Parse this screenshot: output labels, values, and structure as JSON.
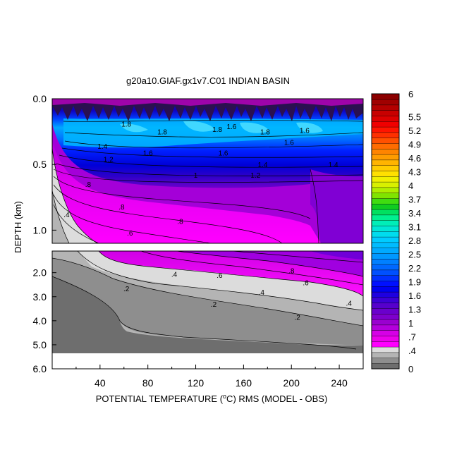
{
  "chart_data": {
    "type": "heatmap",
    "title": "g20a10.GIAF.gx1v7.C01 INDIAN BASIN",
    "xlabel_prefix": "POTENTIAL TEMPERATURE (",
    "xlabel_unit_sup": "o",
    "xlabel_unit_main": "C",
    "xlabel_suffix": ") RMS (MODEL - OBS)",
    "ylabel": "DEPTH (km)",
    "xlim": [
      0,
      260
    ],
    "x_ticks": [
      40,
      80,
      120,
      160,
      200,
      240
    ],
    "x_tick_labels": [
      "40",
      "80",
      "120",
      "160",
      "200",
      "240"
    ],
    "upper_panel": {
      "ylim": [
        0,
        1.1
      ],
      "y_ticks": [
        0.0,
        0.5,
        1.0
      ],
      "y_tick_labels": [
        "0.0",
        "0.5",
        "1.0"
      ]
    },
    "lower_panel": {
      "ylim": [
        1.1,
        6.0
      ],
      "y_ticks": [
        2.0,
        3.0,
        4.0,
        5.0,
        6.0
      ],
      "y_tick_labels": [
        "2.0",
        "3.0",
        "4.0",
        "5.0",
        "6.0"
      ],
      "bottom_depth": 5.35
    },
    "colorbar": {
      "range": [
        0,
        6
      ],
      "labels": [
        "6",
        "5.5",
        "5.2",
        "4.9",
        "4.6",
        "4.3",
        "4",
        "3.7",
        "3.4",
        "3.1",
        "2.8",
        "2.5",
        "2.2",
        "1.9",
        "1.6",
        "1.3",
        "1",
        ".7",
        ".4",
        "0"
      ],
      "colors": [
        "#6e6e6e",
        "#8e8e8e",
        "#b4b4b4",
        "#dcdcdc",
        "#ff00ff",
        "#ec00ec",
        "#d600e6",
        "#b400dc",
        "#9a00d0",
        "#7e00cc",
        "#6a00cc",
        "#5600cc",
        "#3c00d6",
        "#1e00e0",
        "#0000f0",
        "#0010ff",
        "#0030ff",
        "#0050ff",
        "#0068ff",
        "#0080ff",
        "#0098ff",
        "#00aaff",
        "#00bcff",
        "#00ccff",
        "#00dcee",
        "#00e6d6",
        "#00eeb8",
        "#00f090",
        "#00e060",
        "#10cc20",
        "#40dc10",
        "#80e400",
        "#b0ee00",
        "#d8f000",
        "#f0f000",
        "#ffe000",
        "#ffcc00",
        "#ffb400",
        "#ff9c00",
        "#ff8400",
        "#ff6c00",
        "#ff5000",
        "#ff3000",
        "#ff1400",
        "#f00000",
        "#dc0000",
        "#c80000",
        "#b40000",
        "#a00000",
        "#8c0000"
      ]
    },
    "contour_labels": [
      {
        "text": "1.8",
        "x": 62,
        "y": 0.19,
        "panel": "upper"
      },
      {
        "text": "1.8",
        "x": 92,
        "y": 0.25,
        "panel": "upper"
      },
      {
        "text": "1.8",
        "x": 138,
        "y": 0.23,
        "panel": "upper"
      },
      {
        "text": "1.6",
        "x": 150,
        "y": 0.21,
        "panel": "upper"
      },
      {
        "text": "1.8",
        "x": 178,
        "y": 0.25,
        "panel": "upper"
      },
      {
        "text": "1.6",
        "x": 211,
        "y": 0.24,
        "panel": "upper"
      },
      {
        "text": "1.6",
        "x": 198,
        "y": 0.33,
        "panel": "upper"
      },
      {
        "text": "1.4",
        "x": 42,
        "y": 0.36,
        "panel": "upper"
      },
      {
        "text": "1.6",
        "x": 80,
        "y": 0.41,
        "panel": "upper"
      },
      {
        "text": "1.6",
        "x": 143,
        "y": 0.41,
        "panel": "upper"
      },
      {
        "text": "1.2",
        "x": 47,
        "y": 0.46,
        "panel": "upper"
      },
      {
        "text": "1.4",
        "x": 176,
        "y": 0.5,
        "panel": "upper"
      },
      {
        "text": "1.4",
        "x": 235,
        "y": 0.5,
        "panel": "upper"
      },
      {
        "text": "1.2",
        "x": 170,
        "y": 0.58,
        "panel": "upper"
      },
      {
        "text": "1",
        "x": 120,
        "y": 0.58,
        "panel": "upper"
      },
      {
        "text": ".8",
        "x": 30,
        "y": 0.65,
        "panel": "upper"
      },
      {
        "text": ".8",
        "x": 58,
        "y": 0.82,
        "panel": "upper"
      },
      {
        "text": ".8",
        "x": 107,
        "y": 0.93,
        "panel": "upper"
      },
      {
        "text": ".6",
        "x": 65,
        "y": 1.02,
        "panel": "upper"
      },
      {
        "text": ".4",
        "x": 12,
        "y": 0.88,
        "panel": "upper"
      },
      {
        "text": ".6",
        "x": 140,
        "y": 2.1,
        "panel": "lower"
      },
      {
        "text": ".4",
        "x": 102,
        "y": 2.05,
        "panel": "lower"
      },
      {
        "text": ".8",
        "x": 200,
        "y": 1.9,
        "panel": "lower"
      },
      {
        "text": ".6",
        "x": 212,
        "y": 2.4,
        "panel": "lower"
      },
      {
        "text": ".4",
        "x": 175,
        "y": 2.8,
        "panel": "lower"
      },
      {
        "text": ".4",
        "x": 248,
        "y": 3.25,
        "panel": "lower"
      },
      {
        "text": ".2",
        "x": 62,
        "y": 2.65,
        "panel": "lower"
      },
      {
        "text": ".2",
        "x": 135,
        "y": 3.3,
        "panel": "lower"
      },
      {
        "text": ".2",
        "x": 205,
        "y": 3.85,
        "panel": "lower"
      }
    ]
  }
}
